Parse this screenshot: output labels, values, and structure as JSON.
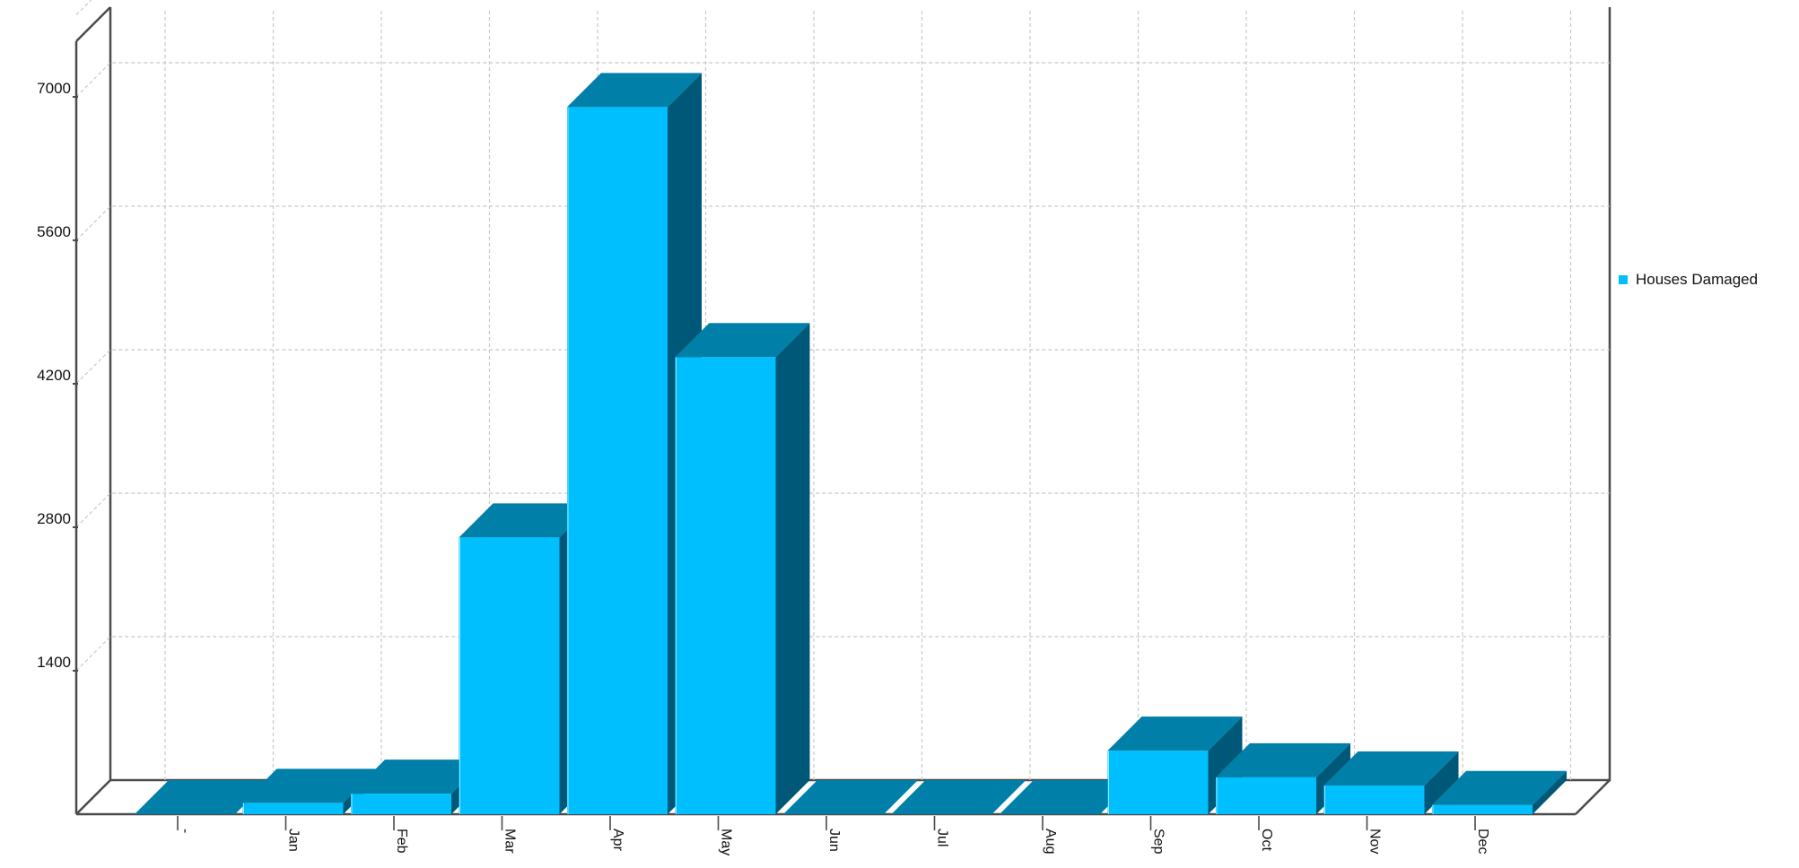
{
  "chart_data": {
    "type": "bar",
    "categories": [
      "-",
      "Jan",
      "Feb",
      "Mar",
      "Apr",
      "May",
      "Jun",
      "Jul",
      "Aug",
      "Sep",
      "Oct",
      "Nov",
      "Dec"
    ],
    "series": [
      {
        "name": "Houses Damaged",
        "values": [
          0,
          110,
          200,
          2700,
          6900,
          4460,
          0,
          0,
          0,
          620,
          360,
          280,
          90
        ]
      }
    ],
    "yticks": [
      1400,
      2800,
      4200,
      5600,
      7000
    ],
    "ylim": [
      0,
      7800
    ],
    "grid": true,
    "legend_position": "right",
    "colors": {
      "front": "#00bfff",
      "top": "#0080a8",
      "side": "#005878",
      "axis": "#4a4a4a",
      "grid": "#c8c8c8"
    }
  }
}
